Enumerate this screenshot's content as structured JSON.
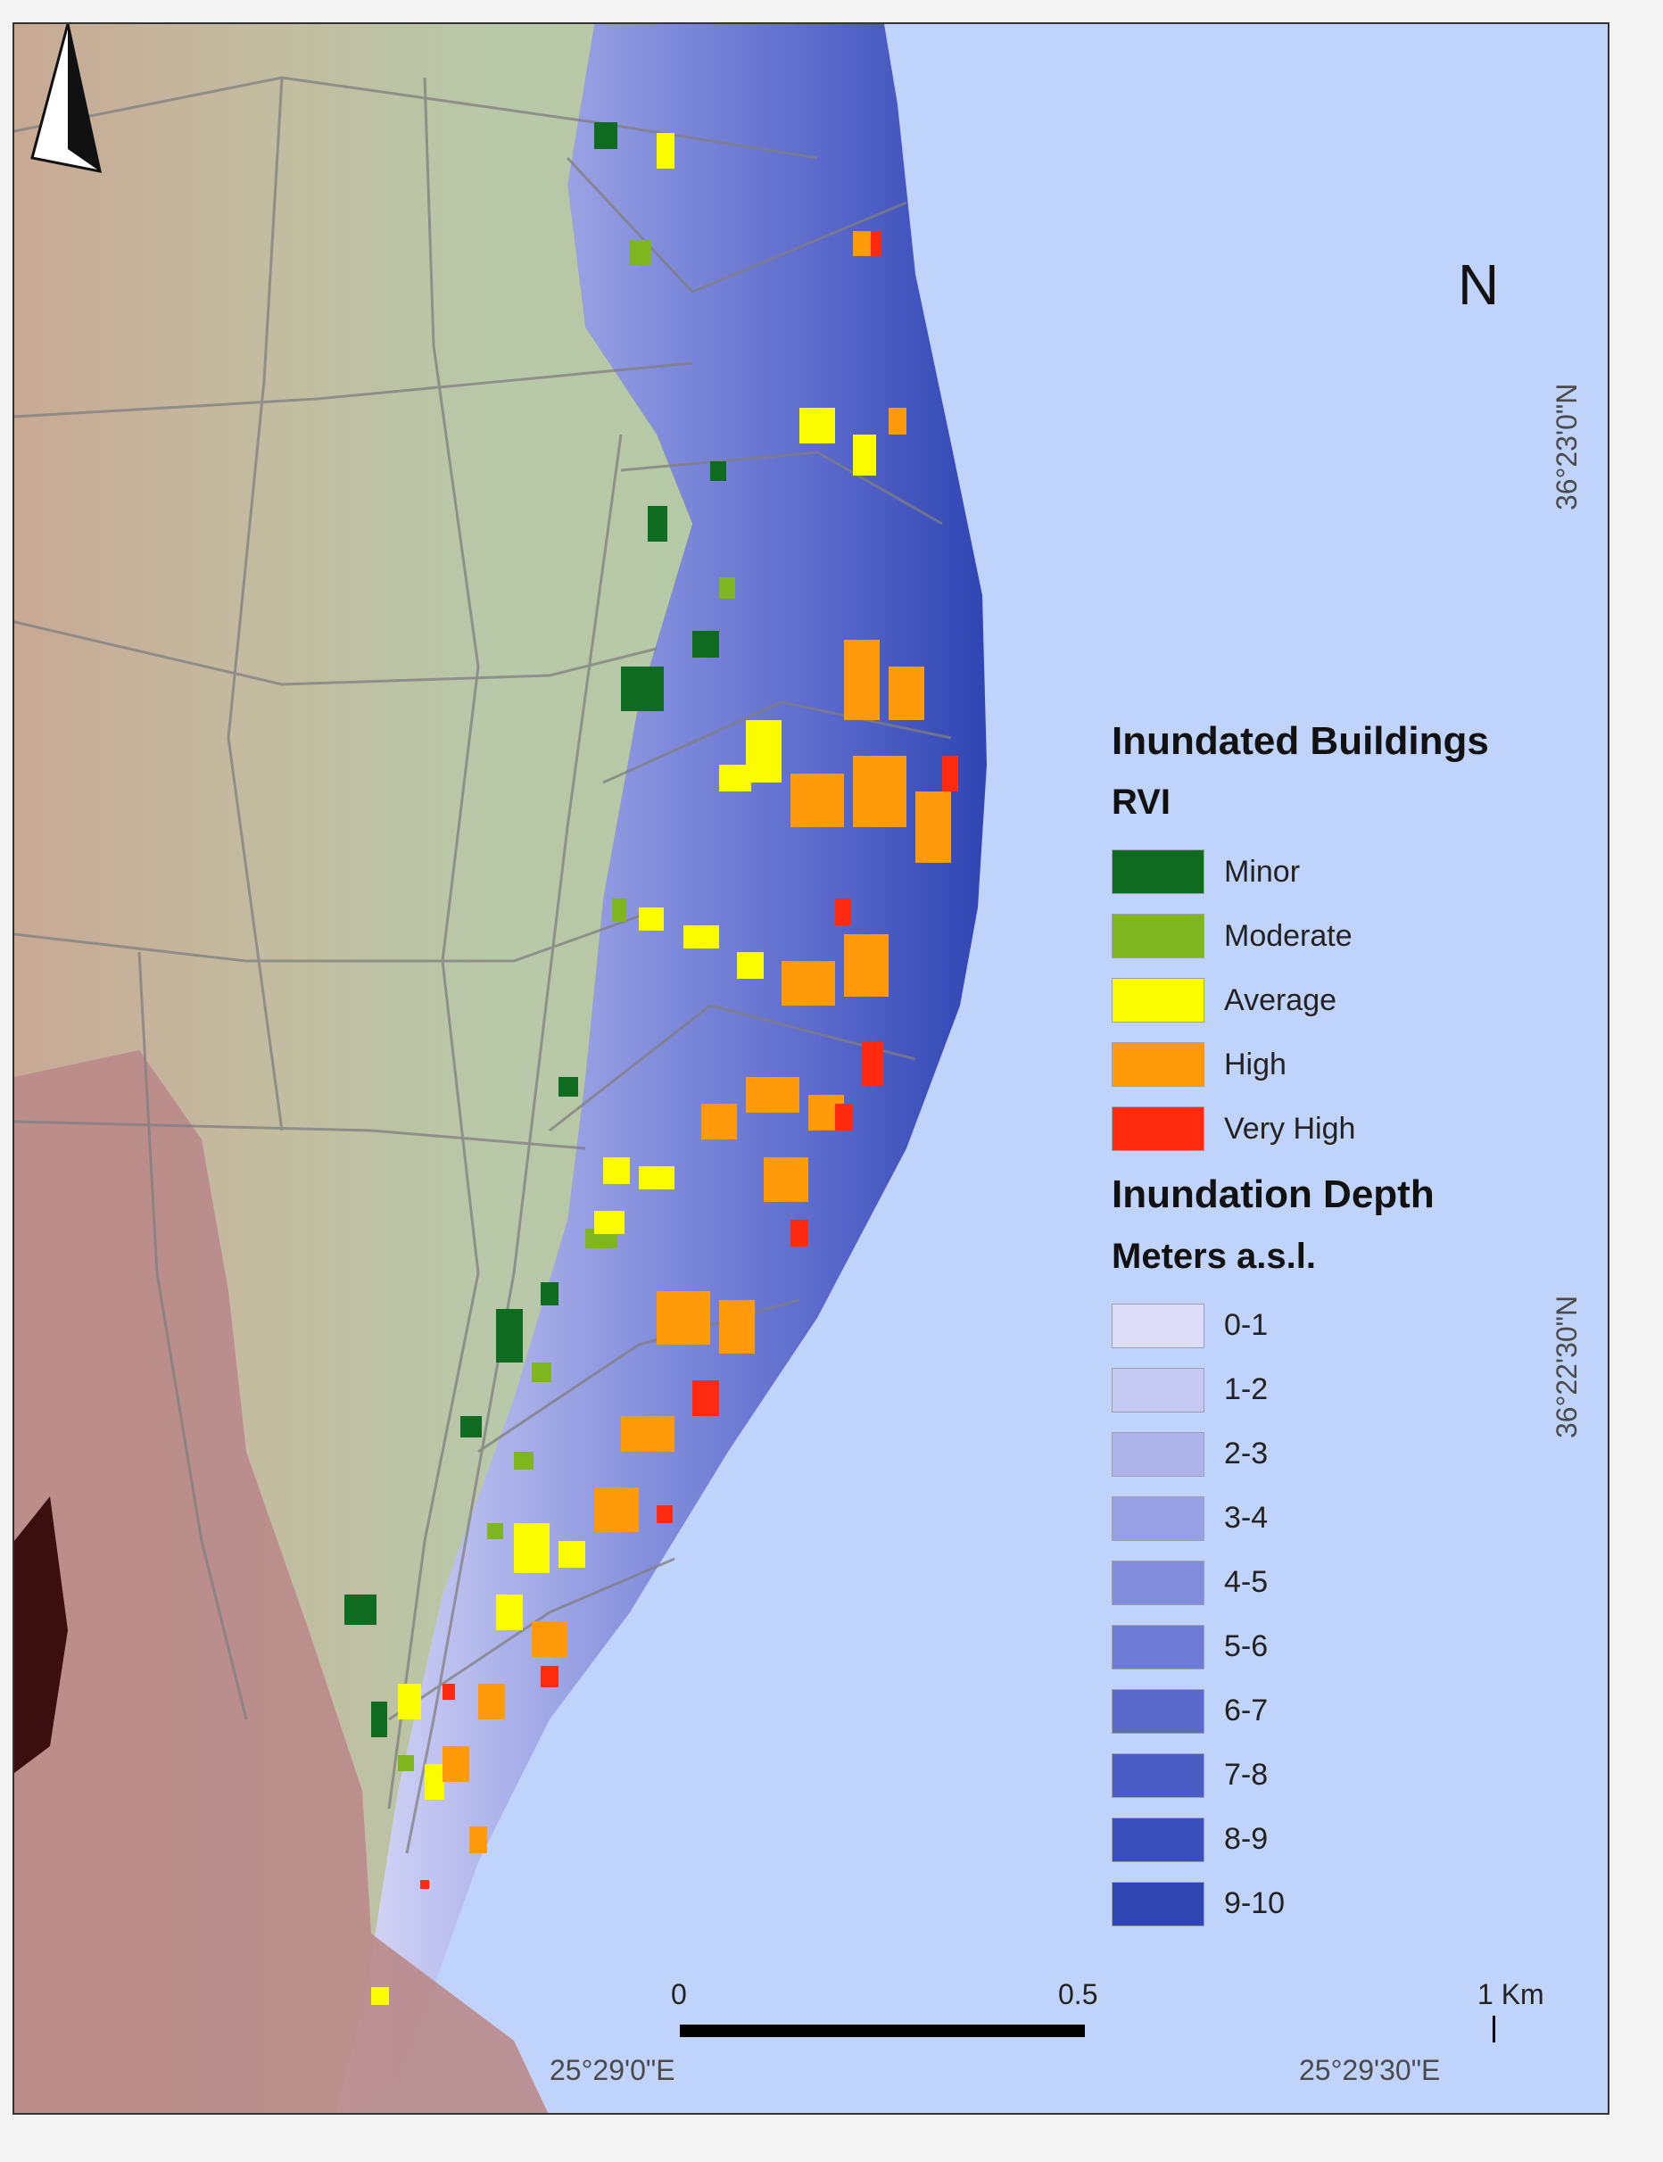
{
  "title": "Inundated Buildings",
  "rvi": {
    "heading": "RVI",
    "classes": [
      {
        "label": "Minor",
        "color": "#0f6b1f"
      },
      {
        "label": "Moderate",
        "color": "#7fb51e"
      },
      {
        "label": "Average",
        "color": "#fcfc00"
      },
      {
        "label": "High",
        "color": "#ff9a0a"
      },
      {
        "label": "Very High",
        "color": "#ff2a10"
      }
    ]
  },
  "depth": {
    "heading": "Inundation Depth",
    "unit": "Meters a.s.l.",
    "classes": [
      {
        "label": "0-1",
        "color": "#dcdcf8"
      },
      {
        "label": "1-2",
        "color": "#c6c9f2"
      },
      {
        "label": "2-3",
        "color": "#aeb4ea"
      },
      {
        "label": "3-4",
        "color": "#97a0e3"
      },
      {
        "label": "4-5",
        "color": "#818cdb"
      },
      {
        "label": "5-6",
        "color": "#6d7bd4"
      },
      {
        "label": "6-7",
        "color": "#5a69cb"
      },
      {
        "label": "7-8",
        "color": "#4a5cc3"
      },
      {
        "label": "8-9",
        "color": "#3b4fba"
      },
      {
        "label": "9-10",
        "color": "#2f45b2"
      }
    ]
  },
  "north_arrow": {
    "label": "N",
    "icon": "north-arrow-icon"
  },
  "coordinates": {
    "lat_top": "36°23'0\"N",
    "lat_bottom": "36°22'30\"N",
    "lon_left": "25°29'0\"E",
    "lon_right": "25°29'30\"E"
  },
  "scale_bar": {
    "ticks": [
      "0",
      "0.5",
      "1 Km"
    ]
  },
  "colors": {
    "sea": "#c0d3fb",
    "land_green": "#b9c8a8",
    "land_brown": "#c8a994",
    "mountain": "#b98a8a"
  }
}
